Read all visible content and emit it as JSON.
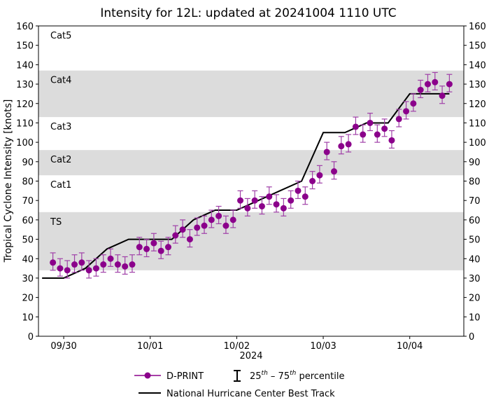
{
  "chart_data": {
    "type": "scatter",
    "title": "Intensity for 12L: updated at 20241004 1110 UTC",
    "xlabel": "2024",
    "ylabel": "Tropical Cyclone Intensity [knots]",
    "ylim": [
      0,
      160
    ],
    "yticks": [
      0,
      10,
      20,
      30,
      40,
      50,
      60,
      70,
      80,
      90,
      100,
      110,
      120,
      130,
      140,
      150,
      160
    ],
    "xlim": [
      "09/29 17:00",
      "10/04 15:00"
    ],
    "xticks": [
      {
        "label": "09/30",
        "time": "09/30 00:00"
      },
      {
        "label": "10/01",
        "time": "10/01 00:00"
      },
      {
        "label": "10/02",
        "time": "10/02 00:00"
      },
      {
        "label": "10/03",
        "time": "10/03 00:00"
      },
      {
        "label": "10/04",
        "time": "10/04 00:00"
      }
    ],
    "grid": false,
    "categories_bands": [
      {
        "label": "TS",
        "min": 34,
        "max": 64,
        "shaded": true
      },
      {
        "label": "Cat1",
        "min": 64,
        "max": 83,
        "shaded": false
      },
      {
        "label": "Cat2",
        "min": 83,
        "max": 96,
        "shaded": true
      },
      {
        "label": "Cat3",
        "min": 96,
        "max": 113,
        "shaded": false
      },
      {
        "label": "Cat4",
        "min": 113,
        "max": 137,
        "shaded": true
      },
      {
        "label": "Cat5",
        "min": 137,
        "max": 160,
        "shaded": false
      }
    ],
    "band_color": "#dcdcdc",
    "series": [
      {
        "name": "D-PRINT",
        "color": "#8b008b",
        "time": [
          "09/29 21:00",
          "09/29 23:00",
          "09/30 01:00",
          "09/30 03:00",
          "09/30 05:00",
          "09/30 07:00",
          "09/30 09:00",
          "09/30 11:00",
          "09/30 13:00",
          "09/30 15:00",
          "09/30 17:00",
          "09/30 19:00",
          "09/30 21:00",
          "09/30 23:00",
          "10/01 01:00",
          "10/01 03:00",
          "10/01 05:00",
          "10/01 07:00",
          "10/01 09:00",
          "10/01 11:00",
          "10/01 13:00",
          "10/01 15:00",
          "10/01 17:00",
          "10/01 19:00",
          "10/01 21:00",
          "10/01 23:00",
          "10/02 01:00",
          "10/02 03:00",
          "10/02 05:00",
          "10/02 07:00",
          "10/02 09:00",
          "10/02 11:00",
          "10/02 13:00",
          "10/02 15:00",
          "10/02 17:00",
          "10/02 19:00",
          "10/02 21:00",
          "10/02 23:00",
          "10/03 01:00",
          "10/03 03:00",
          "10/03 05:00",
          "10/03 07:00",
          "10/03 09:00",
          "10/03 11:00",
          "10/03 13:00",
          "10/03 15:00",
          "10/03 17:00",
          "10/03 19:00",
          "10/03 21:00",
          "10/03 23:00",
          "10/04 01:00",
          "10/04 03:00",
          "10/04 05:00",
          "10/04 07:00",
          "10/04 09:00",
          "10/04 11:00"
        ],
        "values": [
          38,
          35,
          34,
          37,
          38,
          34,
          35,
          37,
          40,
          37,
          36,
          37,
          46,
          45,
          48,
          44,
          46,
          52,
          55,
          50,
          56,
          57,
          60,
          62,
          57,
          60,
          70,
          66,
          70,
          67,
          72,
          68,
          66,
          70,
          75,
          72,
          80,
          83,
          95,
          85,
          98,
          99,
          108,
          104,
          110,
          104,
          107,
          101,
          112,
          116,
          120,
          127,
          130,
          131,
          124,
          130
        ],
        "p25": [
          34,
          31,
          30,
          33,
          34,
          30,
          31,
          33,
          36,
          33,
          32,
          33,
          42,
          41,
          44,
          40,
          42,
          48,
          51,
          46,
          52,
          53,
          56,
          58,
          53,
          56,
          66,
          62,
          66,
          63,
          68,
          64,
          62,
          66,
          71,
          68,
          76,
          79,
          91,
          81,
          94,
          95,
          104,
          100,
          106,
          100,
          103,
          97,
          108,
          112,
          116,
          123,
          126,
          127,
          120,
          126
        ],
        "p75": [
          43,
          40,
          39,
          42,
          43,
          39,
          40,
          42,
          45,
          42,
          41,
          42,
          51,
          50,
          53,
          49,
          51,
          57,
          60,
          55,
          61,
          62,
          65,
          67,
          62,
          65,
          75,
          71,
          75,
          72,
          77,
          73,
          71,
          75,
          80,
          77,
          85,
          88,
          100,
          90,
          103,
          104,
          113,
          109,
          115,
          109,
          112,
          106,
          117,
          121,
          125,
          132,
          135,
          136,
          129,
          135
        ]
      },
      {
        "name": "National Hurricane Center Best Track",
        "color": "#000000",
        "time": [
          "09/29 18:00",
          "09/30 00:00",
          "09/30 06:00",
          "09/30 12:00",
          "09/30 18:00",
          "10/01 00:00",
          "10/01 06:00",
          "10/01 12:00",
          "10/01 18:00",
          "10/02 00:00",
          "10/02 06:00",
          "10/02 12:00",
          "10/02 18:00",
          "10/03 00:00",
          "10/03 06:00",
          "10/03 12:00",
          "10/03 18:00",
          "10/04 00:00",
          "10/04 06:00",
          "10/04 11:00"
        ],
        "values": [
          30,
          30,
          35,
          45,
          50,
          50,
          50,
          60,
          65,
          65,
          70,
          75,
          80,
          105,
          105,
          110,
          110,
          125,
          125,
          125
        ]
      }
    ],
    "legend": {
      "placement": "bottom",
      "dprint": "D-PRINT",
      "percentile_base1": "25",
      "percentile_sup1": "th",
      "percentile_dash": " – ",
      "percentile_base2": "75",
      "percentile_sup2": "th",
      "percentile_tail": " percentile",
      "besttrack": "National Hurricane Center Best Track"
    }
  }
}
